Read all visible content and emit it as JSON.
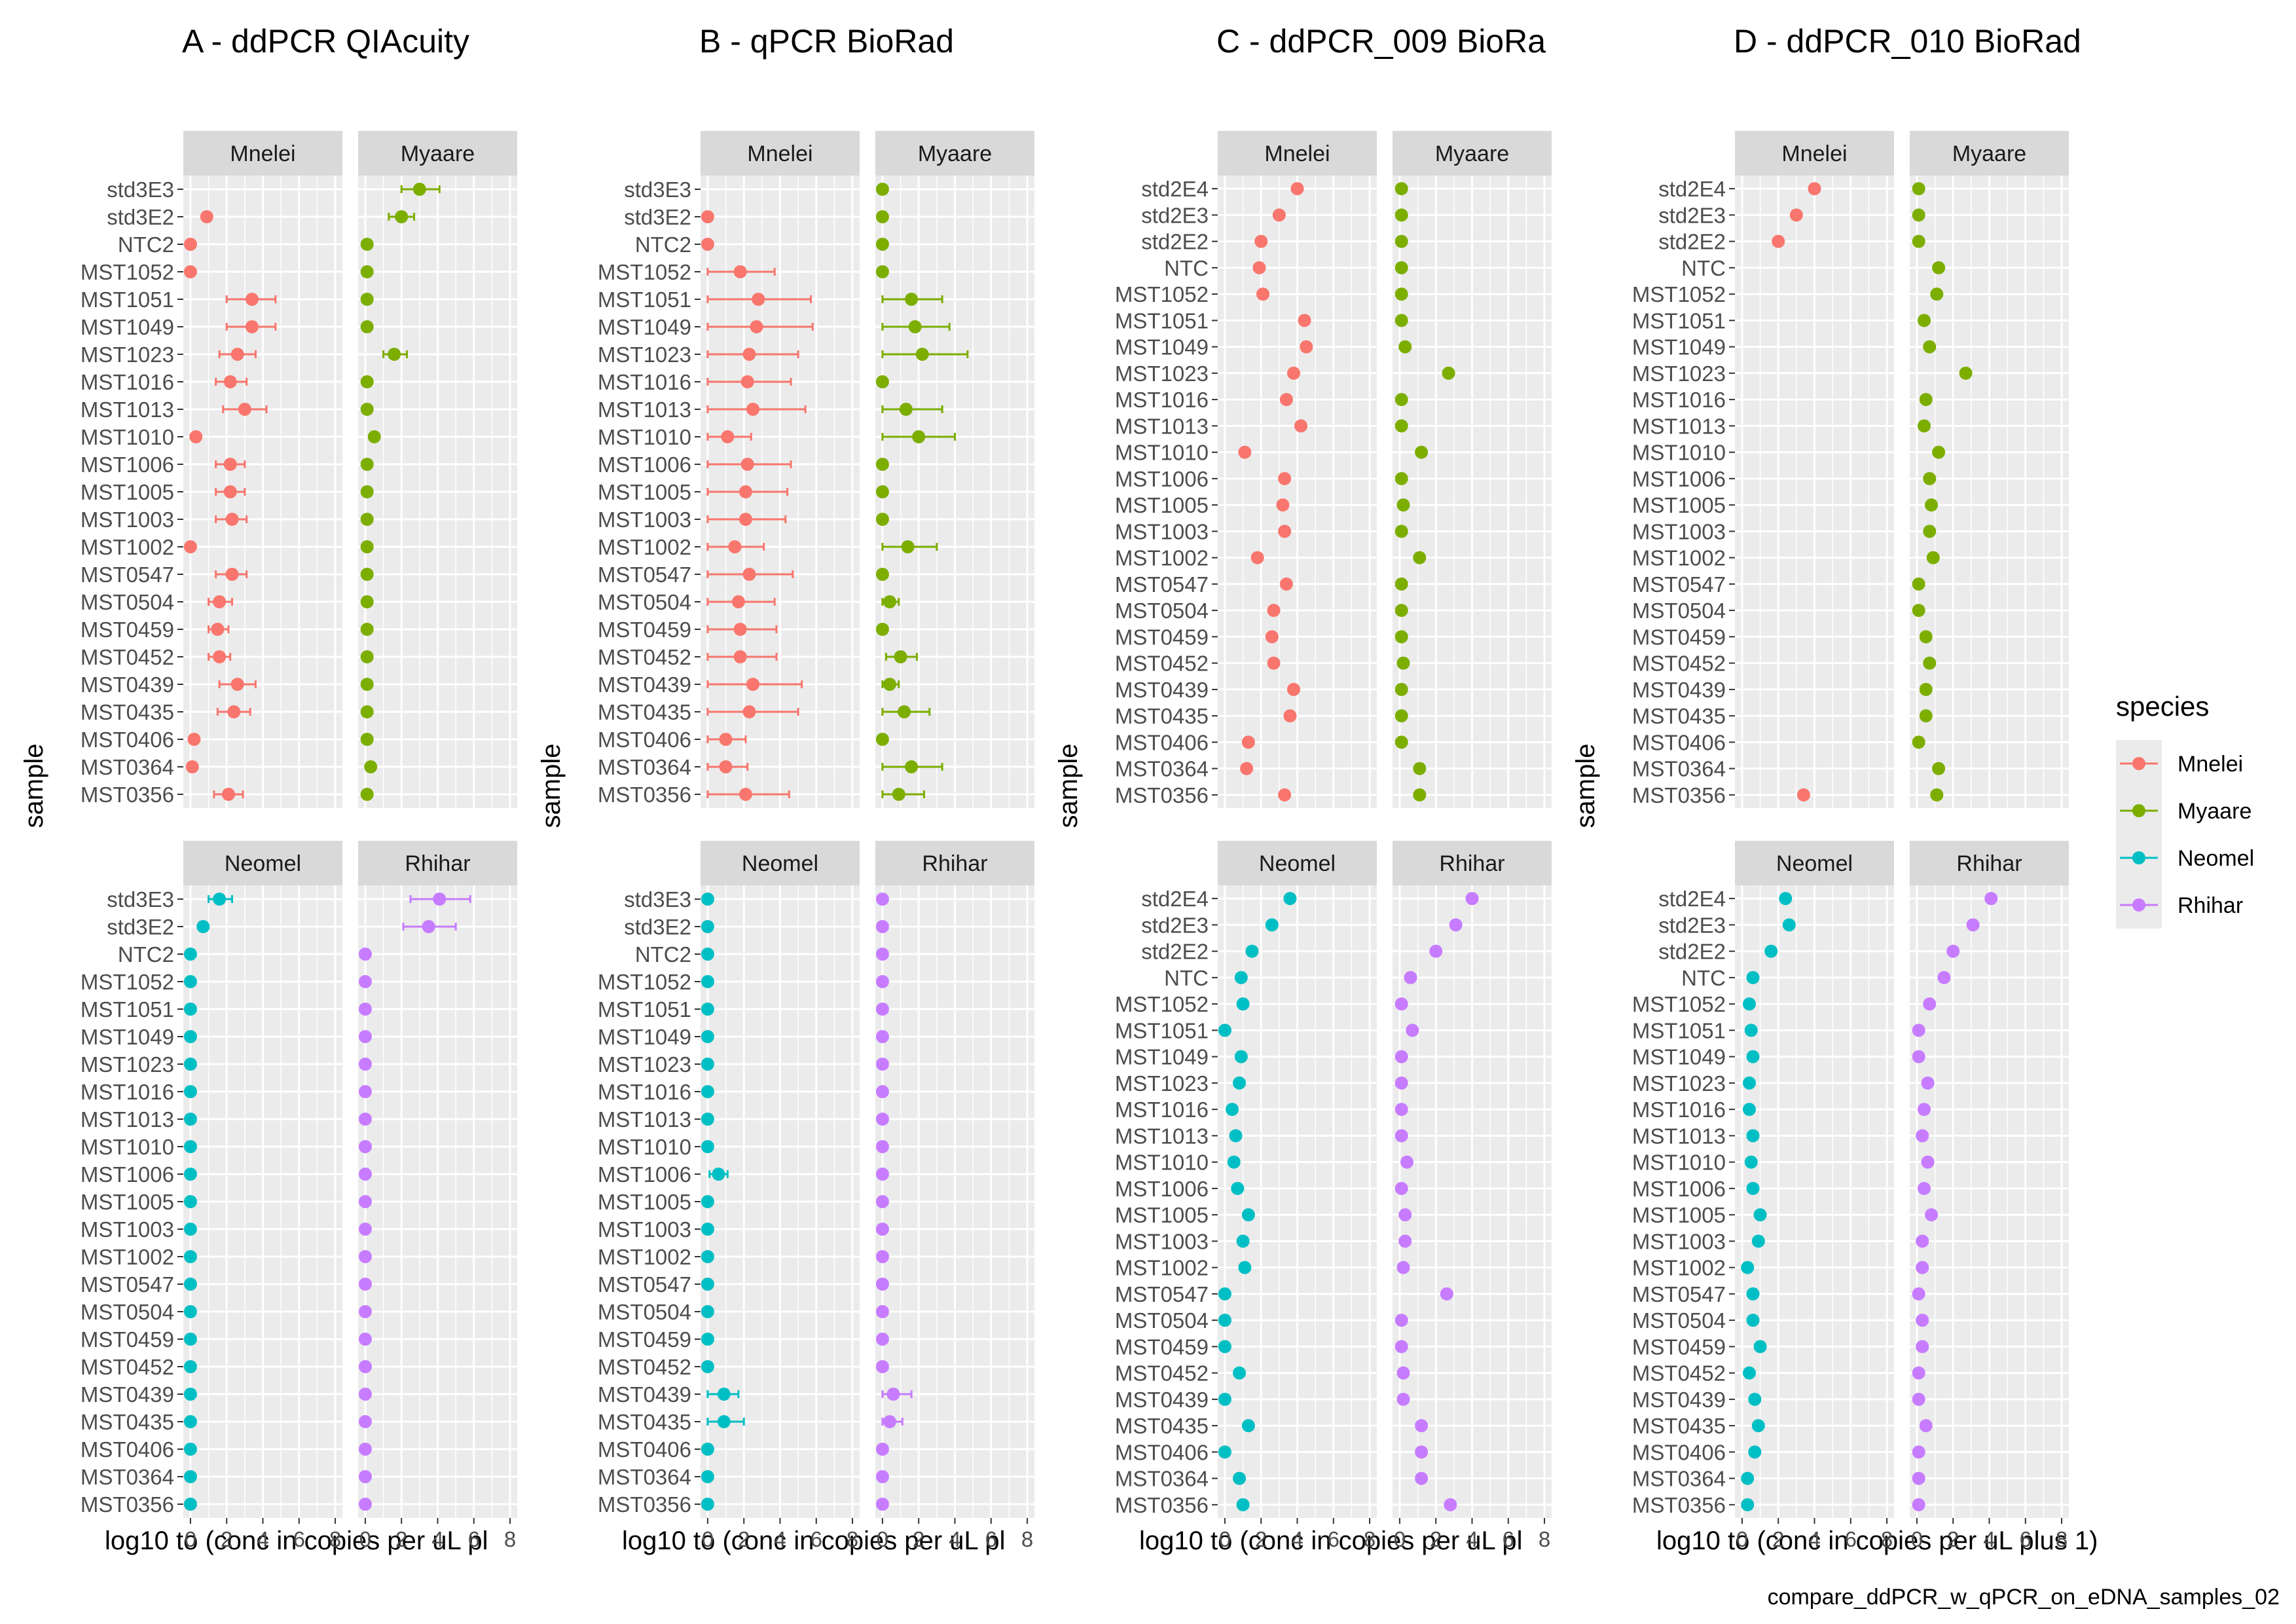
{
  "page": {
    "caption": "compare_ddPCR_w_qPCR_on_eDNA_samples_02",
    "colors": {
      "Mnelei": "#F8766D",
      "Myaare": "#7CAE00",
      "Neomel": "#00BFC4",
      "Rhihar": "#C77CFF",
      "panel_bg": "#EBEBEB",
      "strip_bg": "#D9D9D9",
      "grid": "#FFFFFF"
    }
  },
  "legend": {
    "title": "species",
    "items": [
      "Mnelei",
      "Myaare",
      "Neomel",
      "Rhihar"
    ],
    "placement": "right"
  },
  "chart_data": [
    {
      "type": "scatter",
      "title": "A - ddPCR QIAcuity",
      "xlabel": "log10 to (conc in copies per uL pl",
      "ylabel": "sample",
      "xlim": [
        0,
        8
      ],
      "xticks": [
        "0",
        "2",
        "4",
        "6",
        "8"
      ],
      "facets": [
        "Mnelei",
        "Myaare",
        "Neomel",
        "Rhihar"
      ],
      "samples": [
        "std3E3",
        "std3E2",
        "NTC2",
        "MST1052",
        "MST1051",
        "MST1049",
        "MST1023",
        "MST1016",
        "MST1013",
        "MST1010",
        "MST1006",
        "MST1005",
        "MST1003",
        "MST1002",
        "MST0547",
        "MST0504",
        "MST0459",
        "MST0452",
        "MST0439",
        "MST0435",
        "MST0406",
        "MST0364",
        "MST0356"
      ],
      "series": [
        {
          "name": "Mnelei",
          "values": [
            null,
            0.9,
            0.0,
            0.0,
            3.4,
            3.4,
            2.6,
            2.2,
            3.0,
            0.3,
            2.2,
            2.2,
            2.3,
            0.0,
            2.3,
            1.6,
            1.5,
            1.6,
            2.6,
            2.4,
            0.2,
            0.1,
            2.1
          ],
          "err_low": [
            null,
            0.7,
            0,
            0,
            2.0,
            2.0,
            1.6,
            1.4,
            1.8,
            0.3,
            1.4,
            1.4,
            1.4,
            0,
            1.4,
            1.0,
            1.0,
            1.0,
            1.6,
            1.5,
            0.2,
            0.1,
            1.3
          ],
          "err_high": [
            null,
            1.1,
            0,
            0,
            4.7,
            4.7,
            3.6,
            3.1,
            4.2,
            0.3,
            3.0,
            3.0,
            3.1,
            0,
            3.1,
            2.3,
            2.1,
            2.2,
            3.6,
            3.3,
            0.2,
            0.1,
            2.9
          ]
        },
        {
          "name": "Myaare",
          "values": [
            3.0,
            2.0,
            0.1,
            0.1,
            0.1,
            0.1,
            1.6,
            0.1,
            0.1,
            0.5,
            0.1,
            0.1,
            0.1,
            0.1,
            0.1,
            0.1,
            0.1,
            0.1,
            0.1,
            0.1,
            0.1,
            0.3,
            0.1
          ],
          "err_low": [
            2.0,
            1.3,
            0.1,
            0.1,
            0.1,
            0.1,
            1.0,
            0.1,
            0.1,
            0.5,
            0.1,
            0.1,
            0.1,
            0.1,
            0.1,
            0.1,
            0.1,
            0.1,
            0.1,
            0.1,
            0.1,
            0.3,
            0.1
          ],
          "err_high": [
            4.1,
            2.7,
            0.1,
            0.1,
            0.1,
            0.1,
            2.3,
            0.1,
            0.1,
            0.5,
            0.1,
            0.1,
            0.1,
            0.1,
            0.1,
            0.1,
            0.1,
            0.1,
            0.1,
            0.1,
            0.1,
            0.3,
            0.1
          ]
        },
        {
          "name": "Neomel",
          "values": [
            1.6,
            0.7,
            0.0,
            0.0,
            0.0,
            0.0,
            0.0,
            0.0,
            0.0,
            0.0,
            0.0,
            0.0,
            0.0,
            0.0,
            0.0,
            0.0,
            0.0,
            0.0,
            0.0,
            0.0,
            0.0,
            0.0,
            0.0
          ],
          "err_low": [
            1.0,
            0.7,
            0,
            0,
            0,
            0,
            0,
            0,
            0,
            0,
            0,
            0,
            0,
            0,
            0,
            0,
            0,
            0,
            0,
            0,
            0,
            0,
            0
          ],
          "err_high": [
            2.3,
            0.7,
            0,
            0,
            0,
            0,
            0,
            0,
            0,
            0,
            0,
            0,
            0,
            0,
            0,
            0,
            0,
            0,
            0,
            0,
            0,
            0,
            0
          ]
        },
        {
          "name": "Rhihar",
          "values": [
            4.1,
            3.5,
            0.0,
            0.0,
            0.0,
            0.0,
            0.0,
            0.0,
            0.0,
            0.0,
            0.0,
            0.0,
            0.0,
            0.0,
            0.0,
            0.0,
            0.0,
            0.0,
            0.0,
            0.0,
            0.0,
            0.0,
            0.0
          ],
          "err_low": [
            2.5,
            2.1,
            0,
            0,
            0,
            0,
            0,
            0,
            0,
            0,
            0,
            0,
            0,
            0,
            0,
            0,
            0,
            0,
            0,
            0,
            0,
            0,
            0
          ],
          "err_high": [
            5.8,
            5.0,
            0,
            0,
            0,
            0,
            0,
            0,
            0,
            0,
            0,
            0,
            0,
            0,
            0,
            0,
            0,
            0,
            0,
            0,
            0,
            0,
            0
          ]
        }
      ]
    },
    {
      "type": "scatter",
      "title": "B - qPCR BioRad",
      "xlabel": "log10 to (conc in copies per uL pl",
      "ylabel": "sample",
      "xlim": [
        0,
        8
      ],
      "xticks": [
        "0",
        "2",
        "4",
        "6",
        "8"
      ],
      "facets": [
        "Mnelei",
        "Myaare",
        "Neomel",
        "Rhihar"
      ],
      "samples": [
        "std3E3",
        "std3E2",
        "NTC2",
        "MST1052",
        "MST1051",
        "MST1049",
        "MST1023",
        "MST1016",
        "MST1013",
        "MST1010",
        "MST1006",
        "MST1005",
        "MST1003",
        "MST1002",
        "MST0547",
        "MST0504",
        "MST0459",
        "MST0452",
        "MST0439",
        "MST0435",
        "MST0406",
        "MST0364",
        "MST0356"
      ],
      "series": [
        {
          "name": "Mnelei",
          "values": [
            null,
            0.0,
            0.0,
            1.8,
            2.8,
            2.7,
            2.3,
            2.2,
            2.5,
            1.1,
            2.2,
            2.1,
            2.1,
            1.5,
            2.3,
            1.7,
            1.8,
            1.8,
            2.5,
            2.3,
            1.0,
            1.0,
            2.1
          ],
          "err_low": [
            null,
            0,
            0,
            0,
            0,
            0,
            0,
            0,
            0,
            0,
            0,
            0,
            0,
            0,
            0,
            0,
            0,
            0,
            0,
            0,
            0,
            0,
            0
          ],
          "err_high": [
            null,
            0,
            0,
            3.7,
            5.7,
            5.8,
            5.0,
            4.6,
            5.4,
            2.4,
            4.6,
            4.4,
            4.3,
            3.1,
            4.7,
            3.7,
            3.8,
            3.8,
            5.2,
            5.0,
            2.1,
            2.2,
            4.5
          ]
        },
        {
          "name": "Myaare",
          "values": [
            0.0,
            0.0,
            0.0,
            0.0,
            1.6,
            1.8,
            2.2,
            0.0,
            1.3,
            2.0,
            0.0,
            0.0,
            0.0,
            1.4,
            0.0,
            0.4,
            0.0,
            1.0,
            0.4,
            1.2,
            0.0,
            1.6,
            0.9
          ],
          "err_low": [
            0,
            0,
            0,
            0,
            0,
            0,
            0,
            0,
            0,
            0,
            0,
            0,
            0,
            0,
            0,
            0,
            0,
            0.2,
            0,
            0,
            0,
            0,
            0
          ],
          "err_high": [
            0,
            0,
            0,
            0,
            3.3,
            3.7,
            4.7,
            0,
            3.3,
            4.0,
            0,
            0,
            0,
            3.0,
            0,
            0.9,
            0,
            1.9,
            0.9,
            2.6,
            0,
            3.3,
            2.3
          ]
        },
        {
          "name": "Neomel",
          "values": [
            0.0,
            0.0,
            0.0,
            0.0,
            0.0,
            0.0,
            0.0,
            0.0,
            0.0,
            0.0,
            0.6,
            0.0,
            0.0,
            0.0,
            0.0,
            0.0,
            0.0,
            0.0,
            0.9,
            0.9,
            0.0,
            0.0,
            0.0
          ],
          "err_low": [
            0,
            0,
            0,
            0,
            0,
            0,
            0,
            0,
            0,
            0,
            0.1,
            0,
            0,
            0,
            0,
            0,
            0,
            0,
            0,
            0,
            0,
            0,
            0
          ],
          "err_high": [
            0,
            0,
            0,
            0,
            0,
            0,
            0,
            0,
            0,
            0,
            1.1,
            0,
            0,
            0,
            0,
            0,
            0,
            0,
            1.7,
            2.0,
            0,
            0,
            0
          ]
        },
        {
          "name": "Rhihar",
          "values": [
            0.0,
            0.0,
            0.0,
            0.0,
            0.0,
            0.0,
            0.0,
            0.0,
            0.0,
            0.0,
            0.0,
            0.0,
            0.0,
            0.0,
            0.0,
            0.0,
            0.0,
            0.0,
            0.6,
            0.4,
            0.0,
            0.0,
            0.0
          ],
          "err_low": [
            0,
            0,
            0,
            0,
            0,
            0,
            0,
            0,
            0,
            0,
            0,
            0,
            0,
            0,
            0,
            0,
            0,
            0,
            0,
            0,
            0,
            0,
            0
          ],
          "err_high": [
            0,
            0,
            0,
            0,
            0,
            0,
            0,
            0,
            0,
            0,
            0,
            0,
            0,
            0,
            0,
            0,
            0,
            0,
            1.6,
            1.1,
            0,
            0,
            0
          ]
        }
      ]
    },
    {
      "type": "scatter",
      "title": "C - ddPCR_009 BioRa",
      "xlabel": "log10 to (conc in copies per uL pl",
      "ylabel": "sample",
      "xlim": [
        0,
        8
      ],
      "xticks": [
        "0",
        "2",
        "4",
        "6",
        "8"
      ],
      "facets": [
        "Mnelei",
        "Myaare",
        "Neomel",
        "Rhihar"
      ],
      "samples": [
        "std2E4",
        "std2E3",
        "std2E2",
        "NTC",
        "MST1052",
        "MST1051",
        "MST1049",
        "MST1023",
        "MST1016",
        "MST1013",
        "MST1010",
        "MST1006",
        "MST1005",
        "MST1003",
        "MST1002",
        "MST0547",
        "MST0504",
        "MST0459",
        "MST0452",
        "MST0439",
        "MST0435",
        "MST0406",
        "MST0364",
        "MST0356"
      ],
      "series": [
        {
          "name": "Mnelei",
          "values": [
            4.0,
            3.0,
            2.0,
            1.9,
            2.1,
            4.4,
            4.5,
            3.8,
            3.4,
            4.2,
            1.1,
            3.3,
            3.2,
            3.3,
            1.8,
            3.4,
            2.7,
            2.6,
            2.7,
            3.8,
            3.6,
            1.3,
            1.2,
            3.3
          ]
        },
        {
          "name": "Myaare",
          "values": [
            0.1,
            0.1,
            0.1,
            0.1,
            0.1,
            0.1,
            0.3,
            2.7,
            0.1,
            0.1,
            1.2,
            0.1,
            0.2,
            0.1,
            1.1,
            0.1,
            0.1,
            0.1,
            0.2,
            0.1,
            0.1,
            0.1,
            1.1,
            1.1
          ]
        },
        {
          "name": "Neomel",
          "values": [
            3.6,
            2.6,
            1.5,
            0.9,
            1.0,
            0.0,
            0.9,
            0.8,
            0.4,
            0.6,
            0.5,
            0.7,
            1.3,
            1.0,
            1.1,
            0.0,
            0.0,
            0.0,
            0.8,
            0.0,
            1.3,
            0.0,
            0.8,
            1.0
          ]
        },
        {
          "name": "Rhihar",
          "values": [
            4.0,
            3.1,
            2.0,
            0.6,
            0.1,
            0.7,
            0.1,
            0.1,
            0.1,
            0.1,
            0.4,
            0.1,
            0.3,
            0.3,
            0.2,
            2.6,
            0.1,
            0.1,
            0.2,
            0.2,
            1.2,
            1.2,
            1.2,
            2.8
          ]
        }
      ]
    },
    {
      "type": "scatter",
      "title": "D - ddPCR_010 BioRad",
      "xlabel": "log10 to (conc in copies per uL plus 1)",
      "ylabel": "sample",
      "xlim": [
        0,
        8
      ],
      "xticks": [
        "0",
        "2",
        "4",
        "6",
        "8"
      ],
      "facets": [
        "Mnelei",
        "Myaare",
        "Neomel",
        "Rhihar"
      ],
      "samples": [
        "std2E4",
        "std2E3",
        "std2E2",
        "NTC",
        "MST1052",
        "MST1051",
        "MST1049",
        "MST1023",
        "MST1016",
        "MST1013",
        "MST1010",
        "MST1006",
        "MST1005",
        "MST1003",
        "MST1002",
        "MST0547",
        "MST0504",
        "MST0459",
        "MST0452",
        "MST0439",
        "MST0435",
        "MST0406",
        "MST0364",
        "MST0356"
      ],
      "series": [
        {
          "name": "Mnelei",
          "values": [
            4.0,
            3.0,
            2.0,
            null,
            null,
            null,
            null,
            null,
            null,
            null,
            null,
            null,
            null,
            null,
            null,
            null,
            null,
            null,
            null,
            null,
            null,
            null,
            null,
            3.4
          ]
        },
        {
          "name": "Myaare",
          "values": [
            0.1,
            0.1,
            0.1,
            1.2,
            1.1,
            0.4,
            0.7,
            2.7,
            0.5,
            0.4,
            1.2,
            0.7,
            0.8,
            0.7,
            0.9,
            0.1,
            0.1,
            0.5,
            0.7,
            0.5,
            0.5,
            0.1,
            1.2,
            1.1
          ]
        },
        {
          "name": "Neomel",
          "values": [
            2.4,
            2.6,
            1.6,
            0.6,
            0.4,
            0.5,
            0.6,
            0.4,
            0.4,
            0.6,
            0.5,
            0.6,
            1.0,
            0.9,
            0.3,
            0.6,
            0.6,
            1.0,
            0.4,
            0.7,
            0.9,
            0.7,
            0.3,
            0.3
          ]
        },
        {
          "name": "Rhihar",
          "values": [
            4.1,
            3.1,
            2.0,
            1.5,
            0.7,
            0.1,
            0.1,
            0.6,
            0.4,
            0.3,
            0.6,
            0.4,
            0.8,
            0.3,
            0.3,
            0.1,
            0.3,
            0.3,
            0.1,
            0.1,
            0.5,
            0.1,
            0.1,
            0.1
          ]
        }
      ]
    }
  ]
}
